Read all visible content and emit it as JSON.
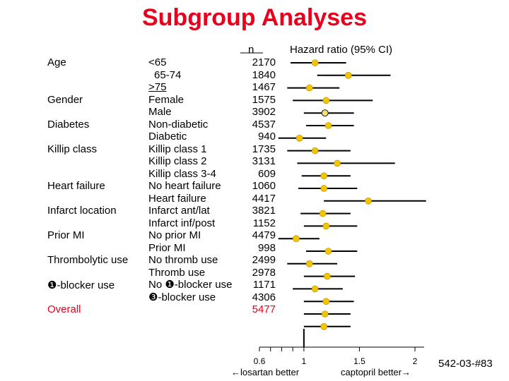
{
  "title": "Subgroup Analyses",
  "headers": {
    "n": "n",
    "hr": "Hazard ratio (95% CI)"
  },
  "categories": [
    {
      "label": "Age",
      "overall": false
    },
    {
      "label": "Gender",
      "overall": false
    },
    {
      "label": "Diabetes",
      "overall": false
    },
    {
      "label": "Killip class",
      "overall": false
    },
    {
      "label": "Heart failure",
      "overall": false
    },
    {
      "label": "Infarct location",
      "overall": false
    },
    {
      "label": "Prior MI",
      "overall": false
    },
    {
      "label": "Thrombolytic use",
      "overall": false
    },
    {
      "label": "❶-blocker use",
      "overall": false
    },
    {
      "label": "Overall",
      "overall": true
    }
  ],
  "axis": {
    "ticks": [
      "0.6",
      "1",
      "1.5",
      "2"
    ],
    "left_label": "losartan better",
    "right_label": "captopril better",
    "left_arrow": "←",
    "right_arrow": "→"
  },
  "footer_code": "542-03-#83",
  "colors": {
    "title": "#e8001c",
    "point": "#f5c400",
    "point_stroke": "#b08c00",
    "line": "#000000"
  },
  "chart_data": {
    "type": "forest",
    "title": "Subgroup Analyses",
    "xlabel": "",
    "xlim": [
      0.5,
      2.2
    ],
    "reference_line": 1,
    "rows": [
      {
        "subgroup": "<65",
        "n": "2170",
        "hr": 1.1,
        "ci": [
          0.88,
          1.38
        ]
      },
      {
        "subgroup": "65-74",
        "n": "1840",
        "hr": 1.4,
        "ci": [
          1.12,
          1.78
        ]
      },
      {
        "subgroup": ">75",
        "n": "1467",
        "hr": 1.05,
        "ci": [
          0.85,
          1.32
        ]
      },
      {
        "subgroup": "Female",
        "n": "1575",
        "hr": 1.2,
        "ci": [
          0.9,
          1.62
        ]
      },
      {
        "subgroup": "Male",
        "n": "3902",
        "hr": 1.19,
        "ci": [
          1.0,
          1.45
        ]
      },
      {
        "subgroup": "Non-diabetic",
        "n": "4537",
        "hr": 1.22,
        "ci": [
          1.02,
          1.45
        ]
      },
      {
        "subgroup": "Diabetic",
        "n": "940",
        "hr": 0.96,
        "ci": [
          0.77,
          1.2
        ]
      },
      {
        "subgroup": "Killip class 1",
        "n": "1735",
        "hr": 1.1,
        "ci": [
          0.85,
          1.42
        ]
      },
      {
        "subgroup": "Killip class 2",
        "n": "3131",
        "hr": 1.3,
        "ci": [
          0.94,
          1.82
        ]
      },
      {
        "subgroup": "Killip class 3-4",
        "n": "609",
        "hr": 1.18,
        "ci": [
          0.98,
          1.42
        ]
      },
      {
        "subgroup": "No heart failure",
        "n": "1060",
        "hr": 1.18,
        "ci": [
          0.95,
          1.48
        ]
      },
      {
        "subgroup": "Heart failure",
        "n": "4417",
        "hr": 1.58,
        "ci": [
          1.18,
          2.1
        ]
      },
      {
        "subgroup": "Infarct ant/lat",
        "n": "3821",
        "hr": 1.17,
        "ci": [
          0.97,
          1.42
        ]
      },
      {
        "subgroup": "Infarct inf/post",
        "n": "1152",
        "hr": 1.2,
        "ci": [
          1.0,
          1.48
        ]
      },
      {
        "subgroup": "No prior MI",
        "n": "4479",
        "hr": 0.93,
        "ci": [
          0.77,
          1.14
        ]
      },
      {
        "subgroup": "Prior MI",
        "n": "998",
        "hr": 1.22,
        "ci": [
          1.02,
          1.48
        ]
      },
      {
        "subgroup": "No thromb use",
        "n": "2499",
        "hr": 1.05,
        "ci": [
          0.85,
          1.3
        ]
      },
      {
        "subgroup": "Thromb use",
        "n": "2978",
        "hr": 1.21,
        "ci": [
          1.0,
          1.46
        ]
      },
      {
        "subgroup": "No ❶-blocker use",
        "n": "1171",
        "hr": 1.1,
        "ci": [
          0.9,
          1.35
        ]
      },
      {
        "subgroup": "❸-blocker use",
        "n": "4306",
        "hr": 1.2,
        "ci": [
          1.0,
          1.45
        ]
      },
      {
        "subgroup": "",
        "n": "5477",
        "hr": 1.19,
        "ci": [
          1.0,
          1.42
        ]
      },
      {
        "subgroup": "",
        "n": "",
        "hr": 1.18,
        "ci": [
          1.0,
          1.42
        ]
      }
    ]
  }
}
